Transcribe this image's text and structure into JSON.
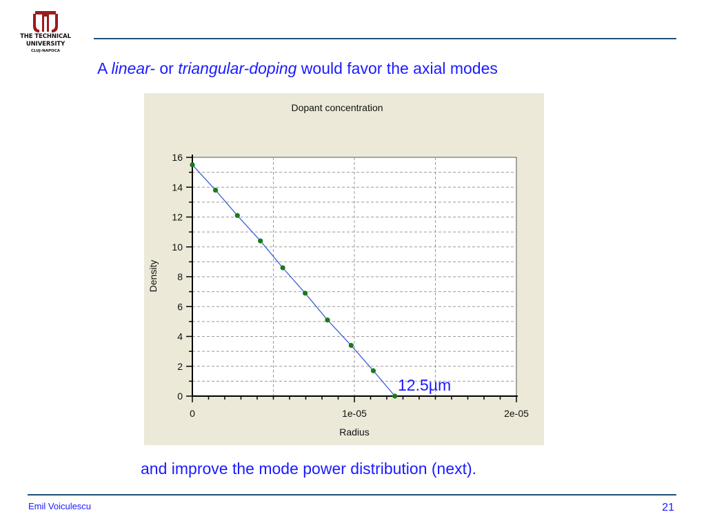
{
  "logo": {
    "line1": "THE TECHNICAL",
    "line2": "UNIVERSITY",
    "line3": "CLUJ-NAPOCA"
  },
  "heading": {
    "part1": "A ",
    "em1": "linear-",
    "part2": " or ",
    "em2": "triangular-doping",
    "part3": " would favor the axial modes"
  },
  "annotation": "12.5µm",
  "subtext": "and improve the mode power distribution (next).",
  "footer": {
    "author": "Emil Voiculescu",
    "page": "21"
  },
  "colors": {
    "text_accent": "#1a1aff",
    "rule": "#1f4e79",
    "panel_bg": "#ece9d8",
    "line": "#3b5bdb",
    "marker": "#1a7a1a"
  },
  "chart_data": {
    "type": "line",
    "title": "Dopant concentration",
    "xlabel": "Radius",
    "ylabel": "Density",
    "xlim": [
      0,
      2e-05
    ],
    "ylim": [
      0,
      16
    ],
    "xticks": [
      0,
      1e-05,
      2e-05
    ],
    "xtick_labels": [
      "0",
      "1e-05",
      "2e-05"
    ],
    "yticks": [
      0,
      2,
      4,
      6,
      8,
      10,
      12,
      14,
      16
    ],
    "ytick_labels": [
      "0",
      "2",
      "4",
      "6",
      "8",
      "10",
      "12",
      "14",
      "16"
    ],
    "grid": true,
    "series": [
      {
        "x": [
          0,
          1.43e-06,
          2.78e-06,
          4.2e-06,
          5.58e-06,
          6.96e-06,
          8.34e-06,
          9.8e-06,
          1.117e-05,
          1.25e-05
        ],
        "y": [
          15.5,
          13.8,
          12.1,
          10.4,
          8.6,
          6.9,
          5.1,
          3.4,
          1.7,
          0
        ]
      }
    ]
  }
}
